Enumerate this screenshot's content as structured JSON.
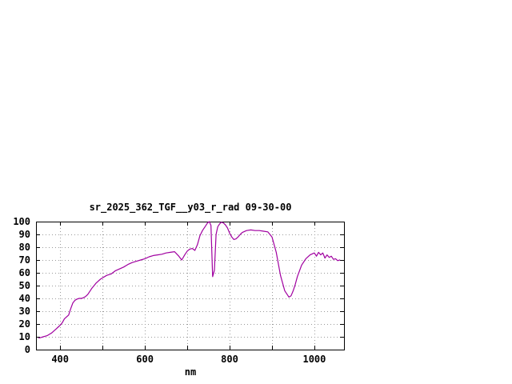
{
  "chart_data": {
    "type": "line",
    "title": "sr_2025_362_TGF__y03_r_rad 09-30-00",
    "xlabel": "nm",
    "ylabel": "",
    "xlim": [
      343,
      1070
    ],
    "ylim": [
      0,
      100
    ],
    "x_tick_labels": [
      400,
      600,
      800,
      1000
    ],
    "x_gridlines": [
      400,
      500,
      600,
      700,
      800,
      900,
      1000
    ],
    "y_ticks": [
      0,
      10,
      20,
      30,
      40,
      50,
      60,
      70,
      80,
      90,
      100
    ],
    "grid": true,
    "legend": "none",
    "line_color": "#a000a0",
    "grid_color": "#9a9a9a",
    "axis_color": "#000000",
    "background_color": "#ffffff",
    "series": [
      {
        "name": "sr_2025_362_TGF__y03_r_rad",
        "x": [
          350,
          355,
          360,
          365,
          370,
          375,
          380,
          385,
          390,
          395,
          400,
          405,
          410,
          415,
          420,
          425,
          430,
          435,
          440,
          445,
          450,
          455,
          460,
          465,
          470,
          475,
          480,
          485,
          490,
          495,
          500,
          510,
          520,
          530,
          540,
          550,
          560,
          570,
          580,
          590,
          600,
          610,
          620,
          630,
          640,
          650,
          660,
          670,
          680,
          687,
          694,
          700,
          706,
          712,
          718,
          724,
          730,
          736,
          742,
          748,
          752,
          756,
          760,
          764,
          768,
          772,
          776,
          780,
          785,
          790,
          795,
          800,
          805,
          810,
          815,
          820,
          825,
          830,
          840,
          850,
          860,
          870,
          880,
          890,
          900,
          910,
          920,
          930,
          940,
          945,
          950,
          955,
          960,
          970,
          980,
          990,
          1000,
          1005,
          1010,
          1015,
          1020,
          1025,
          1030,
          1035,
          1040,
          1045,
          1050,
          1055,
          1060
        ],
        "y": [
          9,
          9.5,
          10,
          10.5,
          11,
          12,
          13,
          14.5,
          16,
          17.5,
          19,
          21,
          24,
          25.5,
          27,
          32,
          36.5,
          38.5,
          39.5,
          40,
          40,
          40.5,
          41.5,
          43,
          45.5,
          48,
          50,
          52,
          53.5,
          55,
          56,
          58,
          59,
          61.5,
          63,
          64.5,
          66.5,
          68,
          69,
          70,
          71,
          72.5,
          73.5,
          74,
          74.5,
          75.5,
          76,
          76.5,
          73,
          70,
          74,
          77,
          78.5,
          79,
          77.5,
          82,
          89,
          93,
          96,
          99,
          100,
          97,
          57,
          62,
          90,
          96,
          98,
          99.5,
          99,
          97.5,
          95,
          91,
          88,
          86,
          86.5,
          88,
          90,
          91.5,
          93,
          93.5,
          93,
          93,
          92.5,
          92,
          88,
          76,
          58,
          46,
          41,
          42,
          46,
          51,
          57,
          66,
          71,
          74,
          75.5,
          73,
          76,
          74,
          75.5,
          71.5,
          74,
          72,
          73,
          70.5,
          71,
          69.5,
          70
        ]
      }
    ]
  }
}
